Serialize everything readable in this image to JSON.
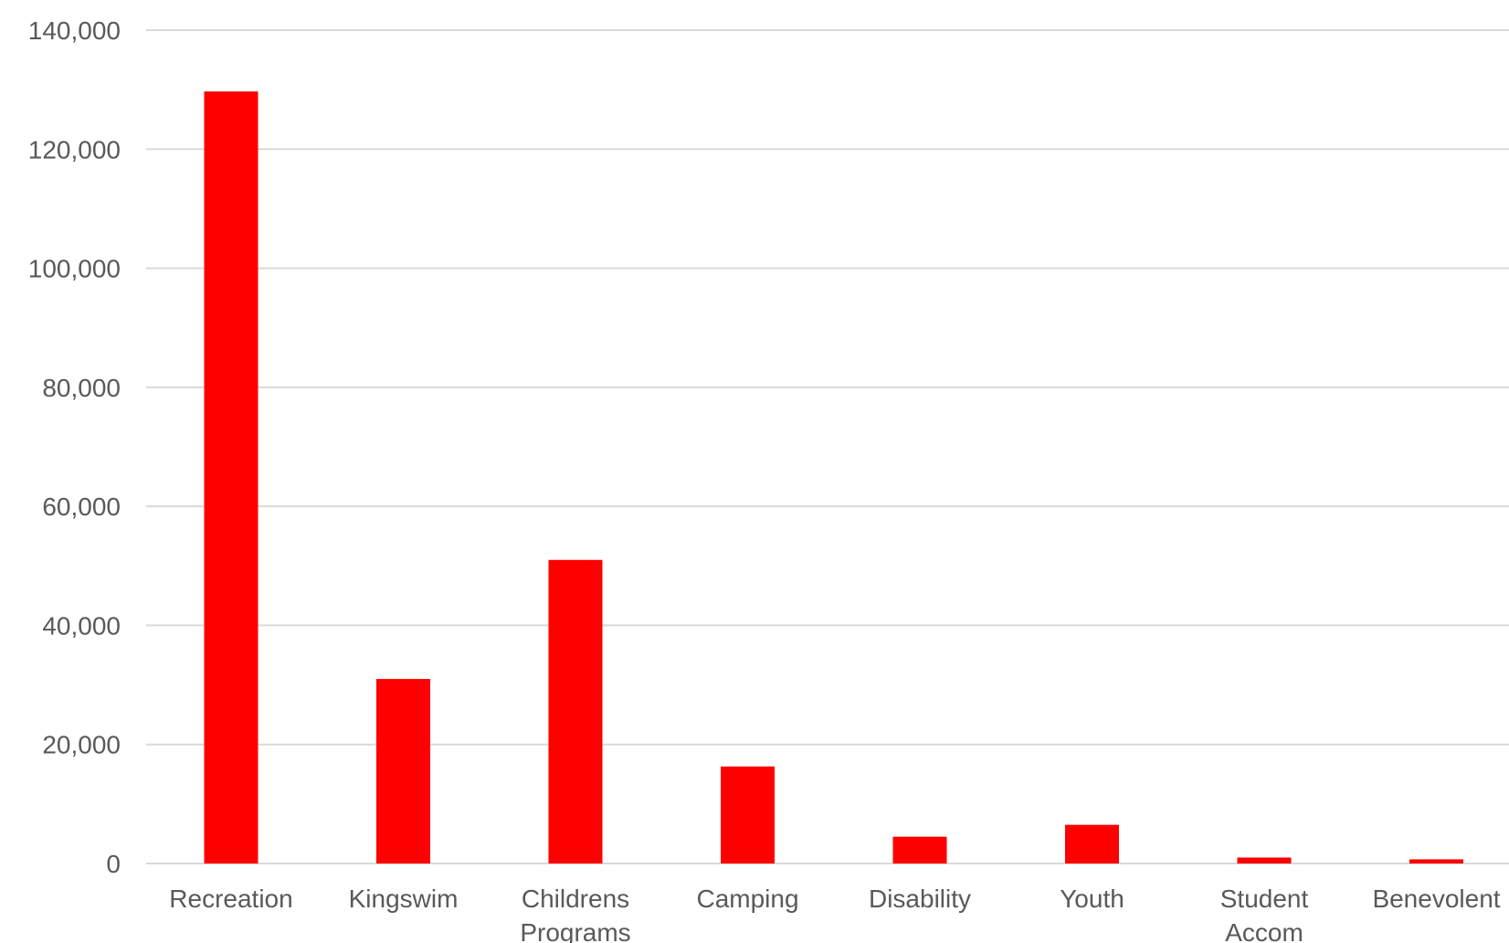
{
  "chart_data": {
    "type": "bar",
    "title": "",
    "xlabel": "",
    "ylabel": "",
    "categories": [
      [
        "Recreation"
      ],
      [
        "Kingswim"
      ],
      [
        "Childrens",
        "Programs"
      ],
      [
        "Camping"
      ],
      [
        "Disability"
      ],
      [
        "Youth"
      ],
      [
        "Student",
        "Accom"
      ],
      [
        "Benevolent"
      ]
    ],
    "values": [
      129700,
      31000,
      51000,
      16300,
      4500,
      6500,
      1000,
      700
    ],
    "ylim": [
      0,
      140000
    ],
    "yticks": [
      0,
      20000,
      40000,
      60000,
      80000,
      100000,
      120000,
      140000
    ],
    "ytick_labels": [
      "0",
      "20,000",
      "40,000",
      "60,000",
      "80,000",
      "100,000",
      "120,000",
      "140,000"
    ],
    "grid": true,
    "legend": "none",
    "bar_color": "#ff0000"
  }
}
